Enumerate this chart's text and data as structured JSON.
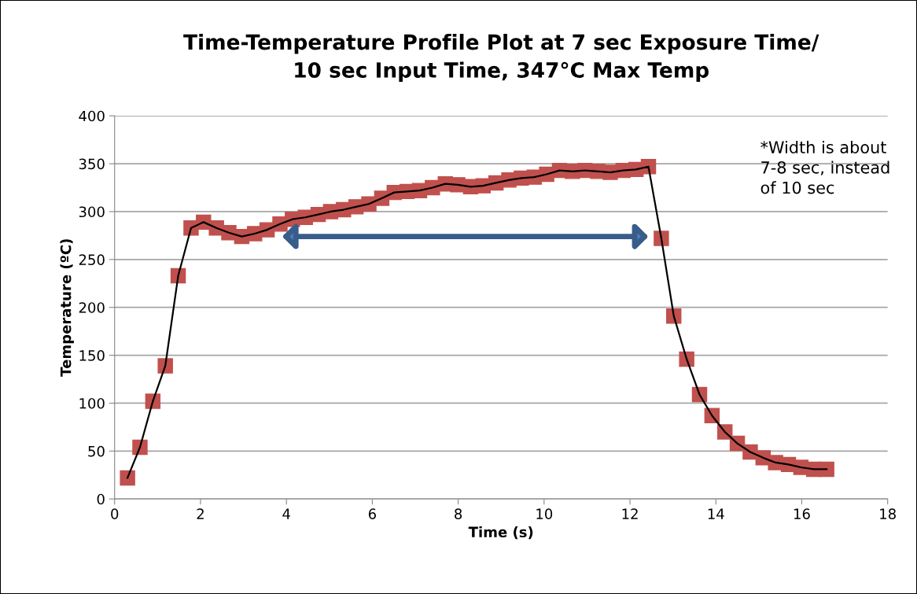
{
  "chart_data": {
    "type": "line",
    "title": "Time-Temperature Profile Plot at 7 sec Exposure Time/\n10 sec Input Time, 347°C Max Temp",
    "xlabel": "Time (s)",
    "ylabel": "Temperature (ºC)",
    "annotations": [
      "*Width is about\n7-8 sec, instead\nof 10 sec"
    ],
    "x": [
      0.3,
      0.59,
      0.89,
      1.18,
      1.48,
      1.78,
      2.07,
      2.37,
      2.66,
      2.96,
      3.26,
      3.55,
      3.85,
      4.14,
      4.44,
      4.74,
      5.03,
      5.33,
      5.62,
      5.92,
      6.22,
      6.51,
      6.81,
      7.1,
      7.4,
      7.7,
      7.99,
      8.29,
      8.58,
      8.88,
      9.18,
      9.47,
      9.77,
      10.06,
      10.36,
      10.66,
      10.95,
      11.25,
      11.54,
      11.84,
      12.14,
      12.43,
      12.73,
      13.02,
      13.32,
      13.62,
      13.91,
      14.21,
      14.5,
      14.8,
      15.1,
      15.39,
      15.69,
      15.98,
      16.28,
      16.58
    ],
    "series": [
      {
        "color": "#c0504d",
        "values": [
          22,
          54,
          102,
          139,
          233,
          283,
          289,
          283,
          278,
          274,
          277,
          281,
          287,
          292,
          294,
          297,
          300,
          302,
          305,
          308,
          314,
          320,
          321,
          322,
          325,
          329,
          328,
          326,
          327,
          330,
          333,
          335,
          336,
          339,
          343,
          342,
          343,
          342,
          341,
          343,
          344,
          347,
          272,
          191,
          146,
          109,
          87,
          70,
          58,
          49,
          43,
          38,
          36,
          33,
          31,
          31
        ]
      }
    ],
    "xlim": [
      0,
      18
    ],
    "xticks": [
      0,
      2,
      4,
      6,
      8,
      10,
      12,
      14,
      16,
      18
    ],
    "ylim": [
      0,
      400
    ],
    "yticks": [
      0,
      50,
      100,
      150,
      200,
      250,
      300,
      350,
      400
    ],
    "grid": "y",
    "legend": false,
    "marker": "square",
    "line_style": "solid"
  }
}
